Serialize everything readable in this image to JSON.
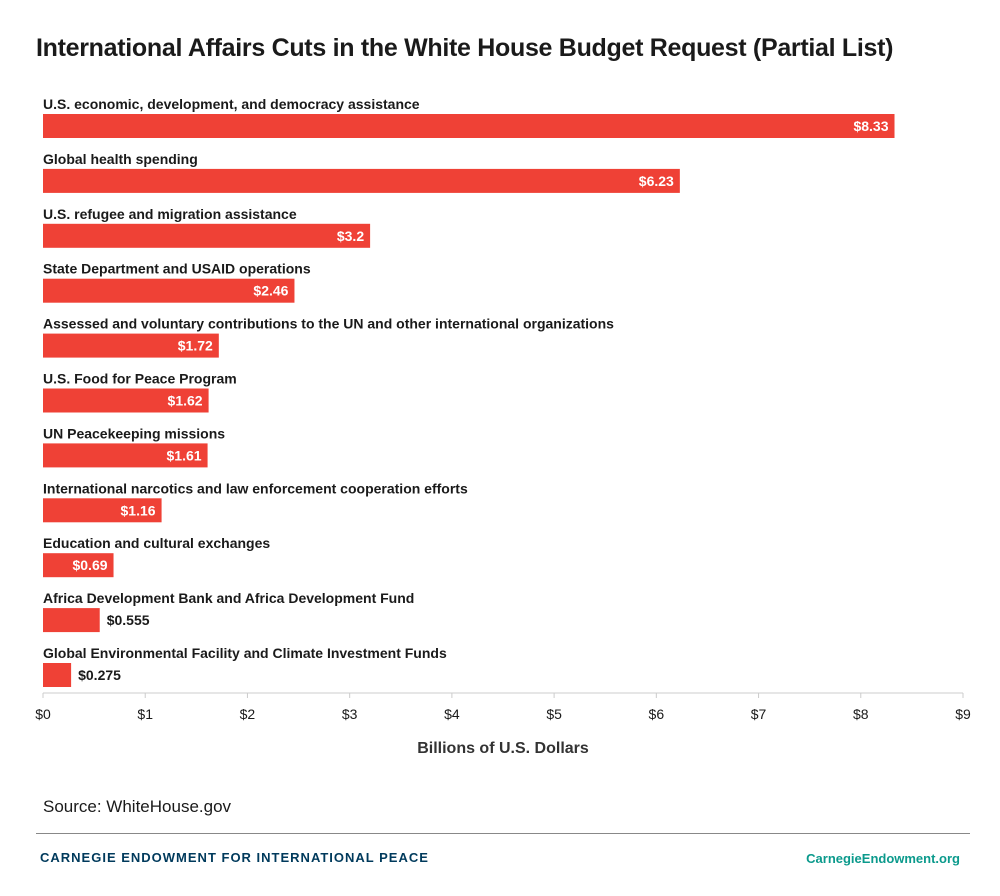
{
  "colors": {
    "bar": "#ef4136",
    "text": "#1a1a1a",
    "axis": "#cccccc",
    "org": "#003a5c",
    "url": "#0b9a8c"
  },
  "chart_data": {
    "type": "bar",
    "orientation": "horizontal",
    "title": "International Affairs Cuts in the White House Budget Request (Partial List)",
    "xlabel": "Billions of U.S. Dollars",
    "xlim": [
      0,
      9
    ],
    "xticks": [
      "$0",
      "$1",
      "$2",
      "$3",
      "$4",
      "$5",
      "$6",
      "$7",
      "$8",
      "$9"
    ],
    "grid": false,
    "categories": [
      "U.S. economic, development, and democracy assistance",
      "Global health spending",
      "U.S. refugee and migration assistance",
      "State Department and USAID operations",
      "Assessed and voluntary contributions to the UN and other international organizations",
      "U.S. Food for Peace Program",
      "UN Peacekeeping missions",
      "International narcotics and law enforcement cooperation efforts",
      "Education and cultural exchanges",
      "Africa Development Bank and Africa Development Fund",
      "Global Environmental Facility and Climate Investment Funds"
    ],
    "values": [
      8.33,
      6.23,
      3.2,
      2.46,
      1.72,
      1.62,
      1.61,
      1.16,
      0.69,
      0.555,
      0.275
    ],
    "value_labels": [
      "$8.33",
      "$6.23",
      "$3.2",
      "$2.46",
      "$1.72",
      "$1.62",
      "$1.61",
      "$1.16",
      "$0.69",
      "$0.555",
      "$0.275"
    ]
  },
  "footer": {
    "source": "Source: WhiteHouse.gov",
    "organization": "CARNEGIE ENDOWMENT FOR INTERNATIONAL PEACE",
    "url": "CarnegieEndowment.org"
  }
}
